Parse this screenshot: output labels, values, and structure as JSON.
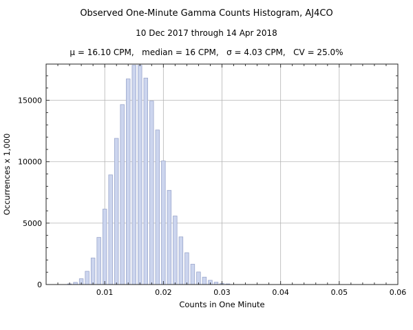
{
  "header": {
    "title": "Observed One-Minute Gamma Counts Histogram, AJ4CO",
    "subtitle": "10 Dec 2017 through 14 Apr 2018",
    "stats": "μ = 16.10 CPM,   median = 16 CPM,   σ = 4.03 CPM,   CV = 25.0%"
  },
  "chart_data": {
    "type": "bar",
    "title": "Observed One-Minute Gamma Counts Histogram, AJ4CO",
    "subtitle": "10 Dec 2017 through 14 Apr 2018",
    "stats_line": "μ = 16.10 CPM,   median = 16 CPM,   σ = 4.03 CPM,   CV = 25.0%",
    "xlabel": "Counts in One Minute",
    "ylabel": "Occurrences x 1,000",
    "xlim": [
      0,
      0.06
    ],
    "ylim": [
      0,
      17950
    ],
    "x_ticks": [
      0.01,
      0.02,
      0.03,
      0.04,
      0.05,
      0.06
    ],
    "x_tick_labels": [
      "0.01",
      "0.02",
      "0.03",
      "0.04",
      "0.05",
      "0.06"
    ],
    "x_minor_step": 0.002,
    "y_ticks": [
      0,
      5000,
      10000,
      15000
    ],
    "y_tick_labels": [
      "0",
      "5000",
      "10000",
      "15000"
    ],
    "y_minor_step": 1000,
    "grid": true,
    "grid_color": "#b3b3b3",
    "frame_color": "#222222",
    "bar_color": "#ccd5ee",
    "bar_edge_color": "#9aa6cc",
    "x": [
      0.004,
      0.005,
      0.006,
      0.007,
      0.008,
      0.009,
      0.01,
      0.011,
      0.012,
      0.013,
      0.014,
      0.015,
      0.016,
      0.017,
      0.018,
      0.019,
      0.02,
      0.021,
      0.022,
      0.023,
      0.024,
      0.025,
      0.026,
      0.027,
      0.028,
      0.029,
      0.03,
      0.031
    ],
    "values": [
      55,
      177,
      472,
      1078,
      2158,
      3836,
      6138,
      8928,
      11900,
      14650,
      16740,
      17856,
      17856,
      16812,
      14940,
      12582,
      10062,
      7668,
      5580,
      3881,
      2587,
      1656,
      1019,
      603,
      345,
      190,
      102,
      52
    ]
  }
}
